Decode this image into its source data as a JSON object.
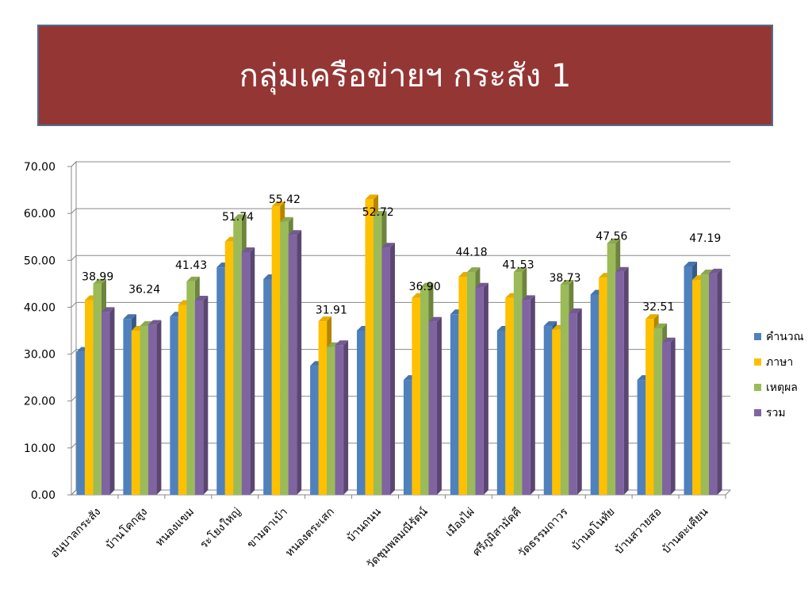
{
  "chart_data": {
    "type": "bar",
    "title": "กลุ่มเครือข่ายฯ กระสัง 1",
    "categories": [
      "อนุบาลกระสัง",
      "บ้านโคกสูง",
      "หนองแขม",
      "ระโยงใหญ่",
      "ขามตาเบ้า",
      "หนองตระเสก",
      "บ้านถนน",
      "วัดชุมพลมณีรัตน์",
      "เมืองไผ่",
      "ศรีภูมิสามัคคี",
      "วัดธรรมถาวร",
      "บ้านอโนทัย",
      "บ้านสวายสอ",
      "บ้านตะเคียน"
    ],
    "series": [
      {
        "name": "คำนวณ",
        "color": "#4f81bd",
        "values": [
          30.5,
          37.5,
          38,
          48.5,
          46,
          27.5,
          35,
          24.5,
          38.5,
          35,
          36,
          42.7,
          24.5,
          48.7
        ]
      },
      {
        "name": "ภาษา",
        "color": "#ffc000",
        "values": [
          41.5,
          35,
          40.5,
          54,
          61.5,
          37,
          63,
          42,
          46.5,
          42,
          35.2,
          46.3,
          37.5,
          45.8
        ]
      },
      {
        "name": "เหตุผล",
        "color": "#9bbb59",
        "values": [
          45,
          36,
          45.5,
          58.8,
          58.2,
          31.5,
          59.5,
          44.2,
          47.5,
          47.5,
          44.8,
          53.6,
          35.5,
          47
        ]
      },
      {
        "name": "รวม",
        "color": "#8064a2",
        "values": [
          38.99,
          36.24,
          41.43,
          51.74,
          55.42,
          31.91,
          52.72,
          36.9,
          44.18,
          41.53,
          38.73,
          47.56,
          32.51,
          47.19
        ],
        "value_labels": [
          "38.99",
          "36.24",
          "41.43",
          "51.74",
          "55.42",
          "31.91",
          "52.72",
          "36.90",
          "44.18",
          "41.53",
          "38.73",
          "47.56",
          "32.51",
          "47.19"
        ]
      }
    ],
    "ylim": [
      0,
      70
    ],
    "yticks": [
      {
        "value": 0,
        "label": "0.00"
      },
      {
        "value": 10,
        "label": "10.00"
      },
      {
        "value": 20,
        "label": "20.00"
      },
      {
        "value": 30,
        "label": "30.00"
      },
      {
        "value": 40,
        "label": "40.00"
      },
      {
        "value": 50,
        "label": "50.00"
      },
      {
        "value": 60,
        "label": "60.00"
      },
      {
        "value": 70,
        "label": "70.00"
      }
    ],
    "grid": true,
    "legend": "right"
  }
}
